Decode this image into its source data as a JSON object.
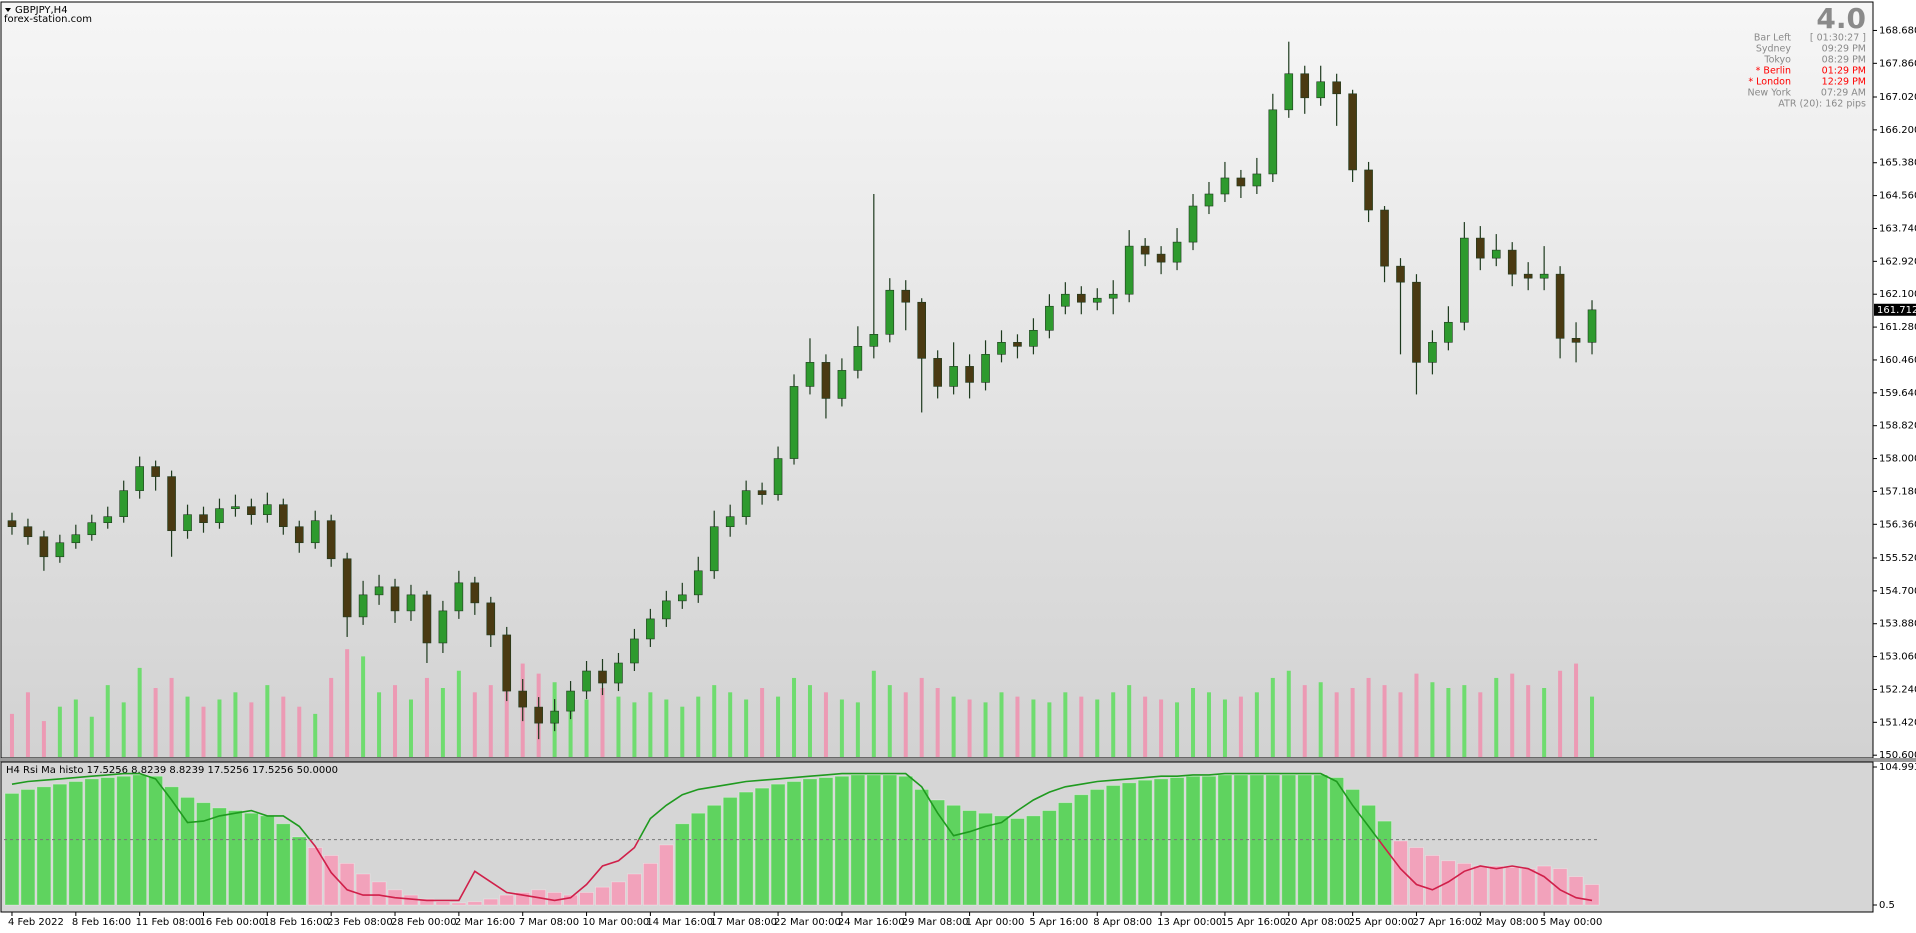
{
  "chart_data": [
    {
      "type": "candlestick",
      "title": "GBPJPY,H4",
      "subtitle": "forex-station.com",
      "categories": [
        "4 Feb 2022",
        null,
        null,
        null,
        "8 Feb 16:00",
        null,
        null,
        null,
        "11 Feb 08:00",
        null,
        null,
        null,
        "16 Feb 00:00",
        null,
        null,
        null,
        "18 Feb 16:00",
        null,
        null,
        null,
        "23 Feb 08:00",
        null,
        null,
        null,
        "28 Feb 00:00",
        null,
        null,
        null,
        "2 Mar 16:00",
        null,
        null,
        null,
        "7 Mar 08:00",
        null,
        null,
        null,
        "10 Mar 00:00",
        null,
        null,
        null,
        "14 Mar 16:00",
        null,
        null,
        null,
        "17 Mar 08:00",
        null,
        null,
        null,
        "22 Mar 00:00",
        null,
        null,
        null,
        "24 Mar 16:00",
        null,
        null,
        null,
        "29 Mar 08:00",
        null,
        null,
        null,
        "1 Apr 00:00",
        null,
        null,
        null,
        "5 Apr 16:00",
        null,
        null,
        null,
        "8 Apr 08:00",
        null,
        null,
        null,
        "13 Apr 00:00",
        null,
        null,
        null,
        "15 Apr 16:00",
        null,
        null,
        null,
        "20 Apr 08:00",
        null,
        null,
        null,
        "25 Apr 00:00",
        null,
        null,
        null,
        "27 Apr 16:00",
        null,
        null,
        null,
        "2 May 08:00",
        null,
        null,
        null,
        "5 May 00:00",
        null,
        null,
        null
      ],
      "open": [
        156.45,
        156.3,
        156.05,
        155.55,
        155.9,
        156.1,
        156.4,
        156.55,
        157.2,
        157.8,
        157.55,
        156.2,
        156.6,
        156.4,
        156.75,
        156.8,
        156.6,
        156.85,
        156.3,
        155.9,
        156.45,
        155.5,
        154.05,
        154.6,
        154.8,
        154.2,
        154.6,
        153.4,
        154.2,
        154.9,
        154.4,
        153.6,
        152.2,
        151.8,
        151.4,
        151.7,
        152.2,
        152.7,
        152.4,
        152.9,
        153.5,
        154.0,
        154.45,
        154.6,
        155.2,
        156.3,
        156.55,
        157.2,
        157.1,
        158.0,
        159.8,
        160.4,
        159.5,
        160.2,
        160.8,
        161.1,
        162.2,
        161.9,
        160.5,
        159.8,
        160.3,
        159.9,
        160.6,
        160.9,
        160.8,
        161.2,
        161.8,
        162.1,
        161.9,
        162.0,
        162.1,
        163.3,
        163.1,
        162.9,
        163.4,
        164.3,
        164.6,
        165.0,
        164.8,
        165.1,
        166.7,
        167.6,
        167.0,
        167.4,
        167.1,
        165.2,
        164.2,
        162.8,
        162.4,
        160.4,
        160.9,
        161.4,
        163.5,
        163.0,
        163.2,
        162.6,
        162.5,
        162.6,
        161.0,
        160.9
      ],
      "high": [
        156.65,
        156.5,
        156.2,
        156.1,
        156.35,
        156.6,
        156.8,
        157.45,
        158.05,
        157.95,
        157.7,
        156.85,
        156.8,
        157.0,
        157.1,
        157.0,
        157.15,
        157.0,
        156.45,
        156.7,
        156.6,
        155.65,
        154.95,
        155.1,
        155.0,
        154.85,
        154.7,
        154.45,
        155.2,
        155.05,
        154.55,
        153.8,
        152.5,
        152.05,
        152.0,
        152.45,
        152.95,
        153.0,
        153.15,
        153.75,
        154.25,
        154.7,
        154.9,
        155.55,
        156.7,
        156.85,
        157.45,
        157.4,
        158.3,
        160.1,
        161.0,
        160.6,
        160.5,
        161.3,
        164.6,
        162.5,
        162.45,
        162.0,
        160.7,
        160.9,
        160.6,
        160.95,
        161.2,
        161.1,
        161.5,
        162.1,
        162.4,
        162.3,
        162.25,
        162.45,
        163.7,
        163.5,
        163.3,
        163.75,
        164.6,
        164.9,
        165.4,
        165.2,
        165.5,
        167.1,
        168.4,
        167.8,
        167.8,
        167.6,
        167.2,
        165.4,
        164.3,
        163.0,
        162.6,
        161.2,
        161.8,
        163.9,
        163.8,
        163.6,
        163.4,
        162.9,
        163.3,
        162.8,
        161.4,
        161.95
      ],
      "low": [
        156.1,
        155.85,
        155.2,
        155.4,
        155.75,
        155.95,
        156.25,
        156.4,
        157.0,
        157.2,
        155.55,
        156.0,
        156.15,
        156.25,
        156.55,
        156.35,
        156.4,
        156.1,
        155.65,
        155.75,
        155.3,
        153.55,
        153.85,
        154.35,
        153.9,
        153.95,
        152.9,
        153.15,
        154.0,
        154.1,
        153.3,
        151.95,
        151.45,
        151.0,
        151.2,
        151.5,
        152.0,
        152.1,
        152.2,
        152.7,
        153.3,
        153.8,
        154.25,
        154.4,
        155.0,
        156.05,
        156.35,
        156.85,
        156.95,
        157.85,
        159.6,
        159.0,
        159.3,
        160.0,
        160.5,
        160.9,
        161.2,
        159.15,
        159.5,
        159.6,
        159.5,
        159.7,
        160.4,
        160.5,
        160.6,
        161.0,
        161.6,
        161.6,
        161.7,
        161.6,
        161.9,
        162.8,
        162.6,
        162.7,
        163.2,
        164.1,
        164.4,
        164.5,
        164.6,
        164.9,
        166.5,
        166.6,
        166.8,
        166.3,
        164.9,
        163.9,
        162.4,
        160.6,
        159.6,
        160.1,
        160.7,
        161.2,
        162.7,
        162.8,
        162.3,
        162.2,
        162.2,
        160.5,
        160.4,
        160.6
      ],
      "close": [
        156.3,
        156.05,
        155.55,
        155.9,
        156.1,
        156.4,
        156.55,
        157.2,
        157.8,
        157.55,
        156.2,
        156.6,
        156.4,
        156.75,
        156.8,
        156.6,
        156.85,
        156.3,
        155.9,
        156.45,
        155.5,
        154.05,
        154.6,
        154.8,
        154.2,
        154.6,
        153.4,
        154.2,
        154.9,
        154.4,
        153.6,
        152.2,
        151.8,
        151.4,
        151.7,
        152.2,
        152.7,
        152.4,
        152.9,
        153.5,
        154.0,
        154.45,
        154.6,
        155.2,
        156.3,
        156.55,
        157.2,
        157.1,
        158.0,
        159.8,
        160.4,
        159.5,
        160.2,
        160.8,
        161.1,
        162.2,
        161.9,
        160.5,
        159.8,
        160.3,
        159.9,
        160.6,
        160.9,
        160.8,
        161.2,
        161.8,
        162.1,
        161.9,
        162.0,
        162.1,
        163.3,
        163.1,
        162.9,
        163.4,
        164.3,
        164.6,
        165.0,
        164.8,
        165.1,
        166.7,
        167.6,
        167.0,
        167.4,
        167.1,
        165.2,
        164.2,
        162.8,
        162.4,
        160.4,
        160.9,
        161.4,
        163.5,
        163.0,
        163.2,
        162.6,
        162.5,
        162.6,
        161.0,
        160.9,
        161.71
      ],
      "up_color": "#2e9a2e",
      "down_color": "#4a3a12",
      "wick_color": "#1e3a1e",
      "volume": {
        "values": [
          30,
          45,
          25,
          35,
          40,
          28,
          50,
          38,
          62,
          48,
          55,
          42,
          35,
          40,
          45,
          38,
          50,
          42,
          35,
          30,
          55,
          75,
          70,
          45,
          50,
          40,
          55,
          48,
          60,
          45,
          50,
          55,
          65,
          58,
          52,
          45,
          40,
          48,
          42,
          38,
          45,
          40,
          35,
          42,
          50,
          45,
          40,
          48,
          42,
          55,
          50,
          45,
          40,
          38,
          60,
          50,
          45,
          55,
          48,
          42,
          40,
          38,
          45,
          42,
          40,
          38,
          45,
          42,
          40,
          45,
          50,
          42,
          40,
          38,
          48,
          45,
          40,
          42,
          45,
          55,
          60,
          50,
          52,
          45,
          48,
          55,
          50,
          45,
          58,
          52,
          48,
          50,
          45,
          55,
          58,
          50,
          48,
          60,
          65,
          42
        ],
        "lim": [
          0,
          80
        ],
        "up_color": "#6fdc6f",
        "down_color": "#ec9ab4"
      },
      "ylim": [
        150.53,
        169.34
      ],
      "yticks": [
        {
          "value": 168.68,
          "label": "168.680"
        },
        {
          "value": 167.86,
          "label": "167.860"
        },
        {
          "value": 167.02,
          "label": "167.020"
        },
        {
          "value": 166.2,
          "label": "166.200"
        },
        {
          "value": 165.38,
          "label": "165.380"
        },
        {
          "value": 164.56,
          "label": "164.560"
        },
        {
          "value": 163.74,
          "label": "163.740"
        },
        {
          "value": 162.92,
          "label": "162.920"
        },
        {
          "value": 162.1,
          "label": "162.100"
        },
        {
          "value": 161.28,
          "label": "161.280"
        },
        {
          "value": 160.46,
          "label": "160.460"
        },
        {
          "value": 159.64,
          "label": "159.640"
        },
        {
          "value": 158.82,
          "label": "158.820"
        },
        {
          "value": 158,
          "label": "158.000"
        },
        {
          "value": 157.18,
          "label": "157.180"
        },
        {
          "value": 156.36,
          "label": "156.360"
        },
        {
          "value": 155.52,
          "label": "155.520"
        },
        {
          "value": 154.7,
          "label": "154.700"
        },
        {
          "value": 153.88,
          "label": "153.880"
        },
        {
          "value": 153.06,
          "label": "153.060"
        },
        {
          "value": 152.24,
          "label": "152.240"
        },
        {
          "value": 151.42,
          "label": "151.420"
        },
        {
          "value": 150.6,
          "label": "150.600"
        }
      ],
      "current_price": 161.712,
      "grid": false,
      "info": {
        "version": "4.0",
        "rows": [
          {
            "label": "Bar Left",
            "value": "[ 01:30:27 ]",
            "color": "#8a8a8a"
          },
          {
            "label": "Sydney",
            "value": "09:29 PM",
            "color": "#8a8a8a"
          },
          {
            "label": "Tokyo",
            "value": "08:29 PM",
            "color": "#8a8a8a"
          },
          {
            "label": "* Berlin",
            "value": "01:29 PM",
            "color": "#ff0000"
          },
          {
            "label": "* London",
            "value": "12:29 PM",
            "color": "#ff0000"
          },
          {
            "label": "New York",
            "value": "07:29 AM",
            "color": "#8a8a8a"
          }
        ],
        "atr": "ATR (20): 162 pips"
      }
    },
    {
      "type": "histo-line",
      "title": "H4 Rsi Ma histo 17.5256 8.8239 8.8239 17.5256 17.5256 50.0000",
      "histogram": {
        "values": [
          85,
          88,
          90,
          92,
          94,
          96,
          97,
          98,
          99,
          98,
          90,
          82,
          78,
          74,
          72,
          70,
          68,
          62,
          52,
          44,
          38,
          32,
          24,
          18,
          12,
          8,
          5,
          3,
          2,
          3,
          5,
          8,
          10,
          12,
          10,
          8,
          10,
          14,
          18,
          24,
          32,
          46,
          62,
          70,
          76,
          82,
          86,
          89,
          92,
          94,
          96,
          97,
          98,
          99,
          99,
          99,
          98,
          88,
          80,
          76,
          72,
          70,
          68,
          66,
          68,
          72,
          78,
          84,
          88,
          91,
          93,
          95,
          96,
          97,
          98,
          98,
          99,
          99,
          99,
          99,
          99,
          99,
          99,
          97,
          88,
          76,
          64,
          49,
          44,
          38,
          34,
          32,
          30,
          30,
          29,
          28,
          30,
          28,
          22,
          16
        ],
        "color_above": "#5fd35f",
        "color_below": "#f2a2bb"
      },
      "line": {
        "values": [
          92,
          94,
          95,
          96,
          97,
          98,
          99,
          100,
          100,
          96,
          80,
          63,
          64,
          68,
          70,
          72,
          68,
          68,
          60,
          45,
          25,
          12,
          8,
          8,
          6,
          5,
          4,
          4,
          4,
          26,
          18,
          10,
          8,
          6,
          4,
          6,
          16,
          30,
          34,
          44,
          66,
          76,
          84,
          88,
          90,
          92,
          94,
          95,
          96,
          97,
          98,
          99,
          100,
          100,
          100,
          100,
          100,
          90,
          70,
          53,
          56,
          60,
          63,
          72,
          80,
          86,
          90,
          92,
          94,
          95,
          96,
          97,
          98,
          98,
          99,
          99,
          100,
          100,
          100,
          100,
          100,
          100,
          100,
          94,
          76,
          60,
          44,
          28,
          16,
          12,
          18,
          26,
          30,
          28,
          30,
          28,
          22,
          12,
          6,
          4
        ],
        "color_above": "#1f9a1f",
        "color_below": "#d0204a"
      },
      "level": 50,
      "ylim": [
        0.5,
        104.9934
      ],
      "yticks": [
        104.9934,
        0.5
      ]
    }
  ]
}
